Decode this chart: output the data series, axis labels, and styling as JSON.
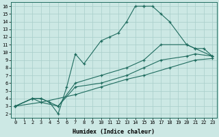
{
  "xlabel": "Humidex (Indice chaleur)",
  "ylabel": "",
  "bg_color": "#cce8e4",
  "grid_color": "#a8ceca",
  "line_color": "#1e6b5e",
  "xlim": [
    -0.5,
    23.5
  ],
  "ylim": [
    1.5,
    16.5
  ],
  "xticks": [
    0,
    1,
    2,
    3,
    4,
    5,
    6,
    7,
    8,
    9,
    10,
    11,
    12,
    13,
    14,
    15,
    16,
    17,
    18,
    19,
    20,
    21,
    22,
    23
  ],
  "yticks": [
    2,
    3,
    4,
    5,
    6,
    7,
    8,
    9,
    10,
    11,
    12,
    13,
    14,
    15,
    16
  ],
  "curves": [
    {
      "x": [
        0,
        2,
        3,
        4,
        5,
        6,
        7,
        8,
        10,
        11,
        12,
        13,
        14,
        15,
        15,
        16,
        17,
        18,
        20,
        21,
        22,
        23
      ],
      "y": [
        3,
        4,
        4,
        3.5,
        2,
        5.5,
        9.8,
        8.5,
        11.5,
        12,
        12.5,
        14,
        16,
        16,
        16,
        16,
        15,
        14,
        11,
        10.5,
        10.5,
        9.5
      ]
    },
    {
      "x": [
        0,
        2,
        3,
        5,
        7,
        10,
        13,
        15,
        17,
        20,
        21,
        23
      ],
      "y": [
        3,
        4,
        4,
        3,
        6,
        7,
        8,
        9,
        11,
        11,
        10.5,
        9.5
      ]
    },
    {
      "x": [
        0,
        2,
        3,
        5,
        7,
        10,
        13,
        15,
        17,
        20,
        21,
        23
      ],
      "y": [
        3,
        4,
        3.5,
        3,
        5.5,
        6,
        7,
        8,
        9,
        9.5,
        9.8,
        9.5
      ]
    },
    {
      "x": [
        0,
        3,
        7,
        10,
        13,
        15,
        18,
        21,
        23
      ],
      "y": [
        3,
        3.5,
        4.5,
        5.5,
        6.5,
        7,
        8,
        9,
        9.2
      ]
    }
  ]
}
